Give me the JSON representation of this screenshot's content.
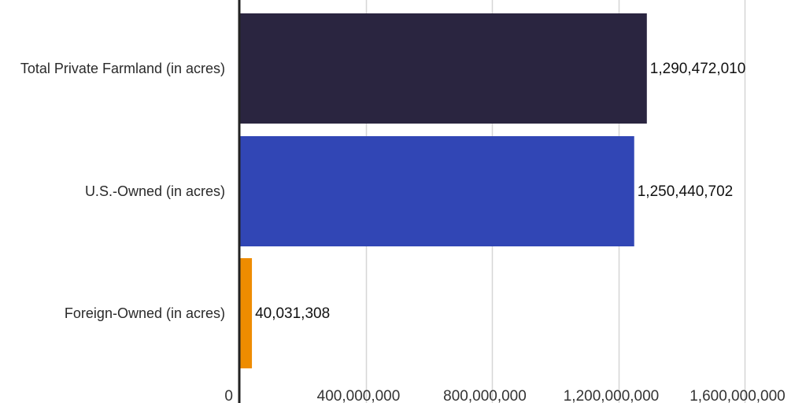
{
  "chart_data": {
    "type": "bar",
    "orientation": "horizontal",
    "title": "",
    "xlabel": "",
    "ylabel": "",
    "categories": [
      "Total Private Farmland (in acres)",
      "U.S.-Owned (in acres)",
      "Foreign-Owned (in acres)"
    ],
    "values": [
      1290472010,
      1250440702,
      40031308
    ],
    "value_labels": [
      "1,290,472,010",
      "1,250,440,702",
      "40,031,308"
    ],
    "colors": [
      "#2a2540",
      "#3146b5",
      "#ee8c00"
    ],
    "xlim": [
      0,
      1600000000
    ],
    "xticks": [
      0,
      400000000,
      800000000,
      1200000000,
      1600000000
    ],
    "xtick_labels": [
      "0",
      "400,000,000",
      "800,000,000",
      "1,200,000,000",
      "1,600,000,000"
    ],
    "grid": true,
    "legend": "none"
  }
}
